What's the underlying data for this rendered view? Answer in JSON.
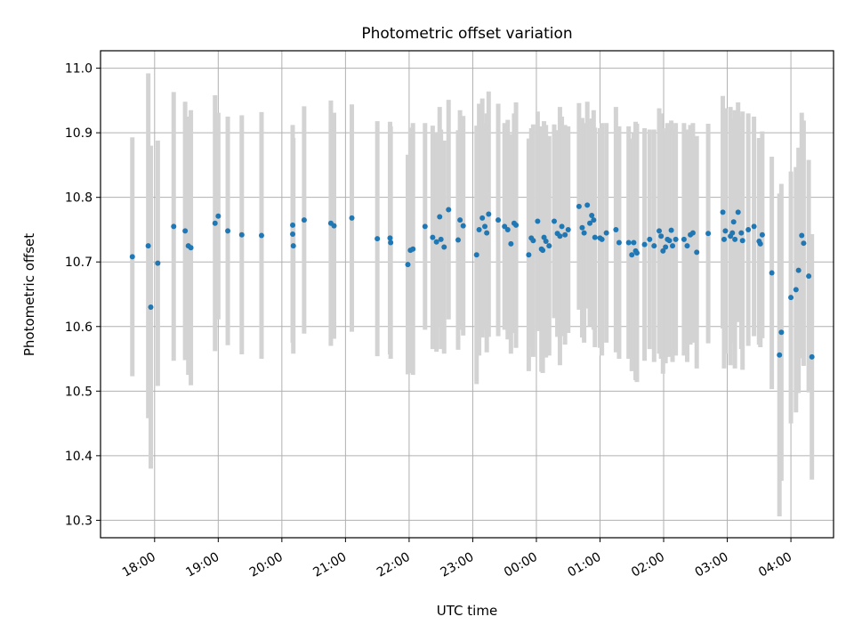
{
  "chart_data": {
    "type": "scatter",
    "title": "Photometric offset variation",
    "xlabel": "UTC time",
    "ylabel": "Photometric offset",
    "x_unit": "hours since 18:00 UTC",
    "xlim": [
      -0.85,
      10.67
    ],
    "ylim": [
      10.273,
      11.027
    ],
    "grid": true,
    "x_ticks": [
      {
        "value": 0,
        "label": "18:00"
      },
      {
        "value": 1,
        "label": "19:00"
      },
      {
        "value": 2,
        "label": "20:00"
      },
      {
        "value": 3,
        "label": "21:00"
      },
      {
        "value": 4,
        "label": "22:00"
      },
      {
        "value": 5,
        "label": "23:00"
      },
      {
        "value": 6,
        "label": "00:00"
      },
      {
        "value": 7,
        "label": "01:00"
      },
      {
        "value": 8,
        "label": "02:00"
      },
      {
        "value": 9,
        "label": "03:00"
      },
      {
        "value": 10,
        "label": "04:00"
      }
    ],
    "y_ticks": [
      {
        "value": 10.3,
        "label": "10.3"
      },
      {
        "value": 10.4,
        "label": "10.4"
      },
      {
        "value": 10.5,
        "label": "10.5"
      },
      {
        "value": 10.6,
        "label": "10.6"
      },
      {
        "value": 10.7,
        "label": "10.7"
      },
      {
        "value": 10.8,
        "label": "10.8"
      },
      {
        "value": 10.9,
        "label": "10.9"
      },
      {
        "value": 11.0,
        "label": "11.0"
      }
    ],
    "colors": {
      "point": "#1f77b4",
      "error_bar": "#d3d3d3",
      "grid": "#b0b0b0"
    },
    "series": [
      {
        "name": "offset",
        "points": [
          [
            -0.35,
            10.708,
            0.185
          ],
          [
            -0.1,
            10.725,
            0.267
          ],
          [
            -0.06,
            10.63,
            0.25
          ],
          [
            0.05,
            10.698,
            0.19
          ],
          [
            0.3,
            10.755,
            0.208
          ],
          [
            0.48,
            10.748,
            0.2
          ],
          [
            0.53,
            10.725,
            0.2
          ],
          [
            0.57,
            10.722,
            0.213
          ],
          [
            0.95,
            10.76,
            0.198
          ],
          [
            1.0,
            10.771,
            0.16
          ],
          [
            1.15,
            10.748,
            0.177
          ],
          [
            1.37,
            10.742,
            0.185
          ],
          [
            1.68,
            10.741,
            0.191
          ],
          [
            2.17,
            10.757,
            0.155
          ],
          [
            2.17,
            10.743,
            0.168
          ],
          [
            2.18,
            10.725,
            0.167
          ],
          [
            2.35,
            10.765,
            0.176
          ],
          [
            2.77,
            10.76,
            0.19
          ],
          [
            2.82,
            10.756,
            0.175
          ],
          [
            3.1,
            10.768,
            0.176
          ],
          [
            3.5,
            10.736,
            0.182
          ],
          [
            3.7,
            10.737,
            0.18
          ],
          [
            3.71,
            10.73,
            0.18
          ],
          [
            3.98,
            10.696,
            0.17
          ],
          [
            4.02,
            10.718,
            0.19
          ],
          [
            4.06,
            10.72,
            0.195
          ],
          [
            4.25,
            10.755,
            0.16
          ],
          [
            4.37,
            10.738,
            0.173
          ],
          [
            4.43,
            10.731,
            0.17
          ],
          [
            4.48,
            10.77,
            0.17
          ],
          [
            4.5,
            10.735,
            0.17
          ],
          [
            4.55,
            10.723,
            0.165
          ],
          [
            4.62,
            10.781,
            0.17
          ],
          [
            4.77,
            10.734,
            0.17
          ],
          [
            4.8,
            10.765,
            0.17
          ],
          [
            4.85,
            10.756,
            0.17
          ],
          [
            5.06,
            10.711,
            0.2
          ],
          [
            5.1,
            10.75,
            0.195
          ],
          [
            5.15,
            10.768,
            0.185
          ],
          [
            5.19,
            10.755,
            0.16
          ],
          [
            5.22,
            10.745,
            0.185
          ],
          [
            5.25,
            10.774,
            0.19
          ],
          [
            5.4,
            10.765,
            0.18
          ],
          [
            5.5,
            10.755,
            0.16
          ],
          [
            5.55,
            10.75,
            0.17
          ],
          [
            5.6,
            10.728,
            0.17
          ],
          [
            5.65,
            10.76,
            0.17
          ],
          [
            5.68,
            10.757,
            0.19
          ],
          [
            5.88,
            10.711,
            0.18
          ],
          [
            5.92,
            10.737,
            0.17
          ],
          [
            5.95,
            10.733,
            0.18
          ],
          [
            6.02,
            10.763,
            0.17
          ],
          [
            6.08,
            10.72,
            0.19
          ],
          [
            6.1,
            10.718,
            0.19
          ],
          [
            6.12,
            10.738,
            0.18
          ],
          [
            6.15,
            10.732,
            0.18
          ],
          [
            6.2,
            10.725,
            0.17
          ],
          [
            6.28,
            10.763,
            0.15
          ],
          [
            6.33,
            10.744,
            0.16
          ],
          [
            6.37,
            10.74,
            0.2
          ],
          [
            6.4,
            10.755,
            0.17
          ],
          [
            6.45,
            10.742,
            0.17
          ],
          [
            6.5,
            10.75,
            0.16
          ],
          [
            6.67,
            10.786,
            0.16
          ],
          [
            6.72,
            10.753,
            0.17
          ],
          [
            6.75,
            10.745,
            0.17
          ],
          [
            6.8,
            10.788,
            0.16
          ],
          [
            6.84,
            10.76,
            0.16
          ],
          [
            6.87,
            10.772,
            0.15
          ],
          [
            6.9,
            10.765,
            0.17
          ],
          [
            6.92,
            10.738,
            0.17
          ],
          [
            7.0,
            10.737,
            0.17
          ],
          [
            7.03,
            10.735,
            0.18
          ],
          [
            7.1,
            10.745,
            0.17
          ],
          [
            7.25,
            10.75,
            0.19
          ],
          [
            7.3,
            10.73,
            0.18
          ],
          [
            7.45,
            10.73,
            0.18
          ],
          [
            7.5,
            10.711,
            0.18
          ],
          [
            7.53,
            10.73,
            0.17
          ],
          [
            7.56,
            10.717,
            0.2
          ],
          [
            7.58,
            10.714,
            0.2
          ],
          [
            7.7,
            10.727,
            0.18
          ],
          [
            7.78,
            10.735,
            0.17
          ],
          [
            7.85,
            10.725,
            0.18
          ],
          [
            7.93,
            10.748,
            0.19
          ],
          [
            7.96,
            10.74,
            0.19
          ],
          [
            7.99,
            10.717,
            0.19
          ],
          [
            8.03,
            10.723,
            0.18
          ],
          [
            8.06,
            10.735,
            0.18
          ],
          [
            8.09,
            10.733,
            0.18
          ],
          [
            8.12,
            10.749,
            0.17
          ],
          [
            8.14,
            10.725,
            0.18
          ],
          [
            8.19,
            10.735,
            0.18
          ],
          [
            8.32,
            10.735,
            0.18
          ],
          [
            8.37,
            10.725,
            0.18
          ],
          [
            8.42,
            10.742,
            0.17
          ],
          [
            8.46,
            10.745,
            0.17
          ],
          [
            8.52,
            10.715,
            0.18
          ],
          [
            8.7,
            10.744,
            0.17
          ],
          [
            8.93,
            10.777,
            0.18
          ],
          [
            8.95,
            10.735,
            0.2
          ],
          [
            8.97,
            10.748,
            0.19
          ],
          [
            9.05,
            10.74,
            0.2
          ],
          [
            9.08,
            10.745,
            0.17
          ],
          [
            9.1,
            10.762,
            0.16
          ],
          [
            9.12,
            10.735,
            0.2
          ],
          [
            9.17,
            10.777,
            0.17
          ],
          [
            9.22,
            10.745,
            0.18
          ],
          [
            9.24,
            10.733,
            0.2
          ],
          [
            9.33,
            10.75,
            0.18
          ],
          [
            9.42,
            10.755,
            0.17
          ],
          [
            9.5,
            10.732,
            0.16
          ],
          [
            9.52,
            10.728,
            0.16
          ],
          [
            9.55,
            10.742,
            0.16
          ],
          [
            9.7,
            10.683,
            0.18
          ],
          [
            9.82,
            10.556,
            0.25
          ],
          [
            9.85,
            10.591,
            0.23
          ],
          [
            10.0,
            10.645,
            0.195
          ],
          [
            10.08,
            10.657,
            0.19
          ],
          [
            10.12,
            10.687,
            0.19
          ],
          [
            10.17,
            10.741,
            0.19
          ],
          [
            10.2,
            10.729,
            0.19
          ],
          [
            10.28,
            10.678,
            0.18
          ],
          [
            10.33,
            10.553,
            0.19
          ]
        ]
      }
    ]
  }
}
